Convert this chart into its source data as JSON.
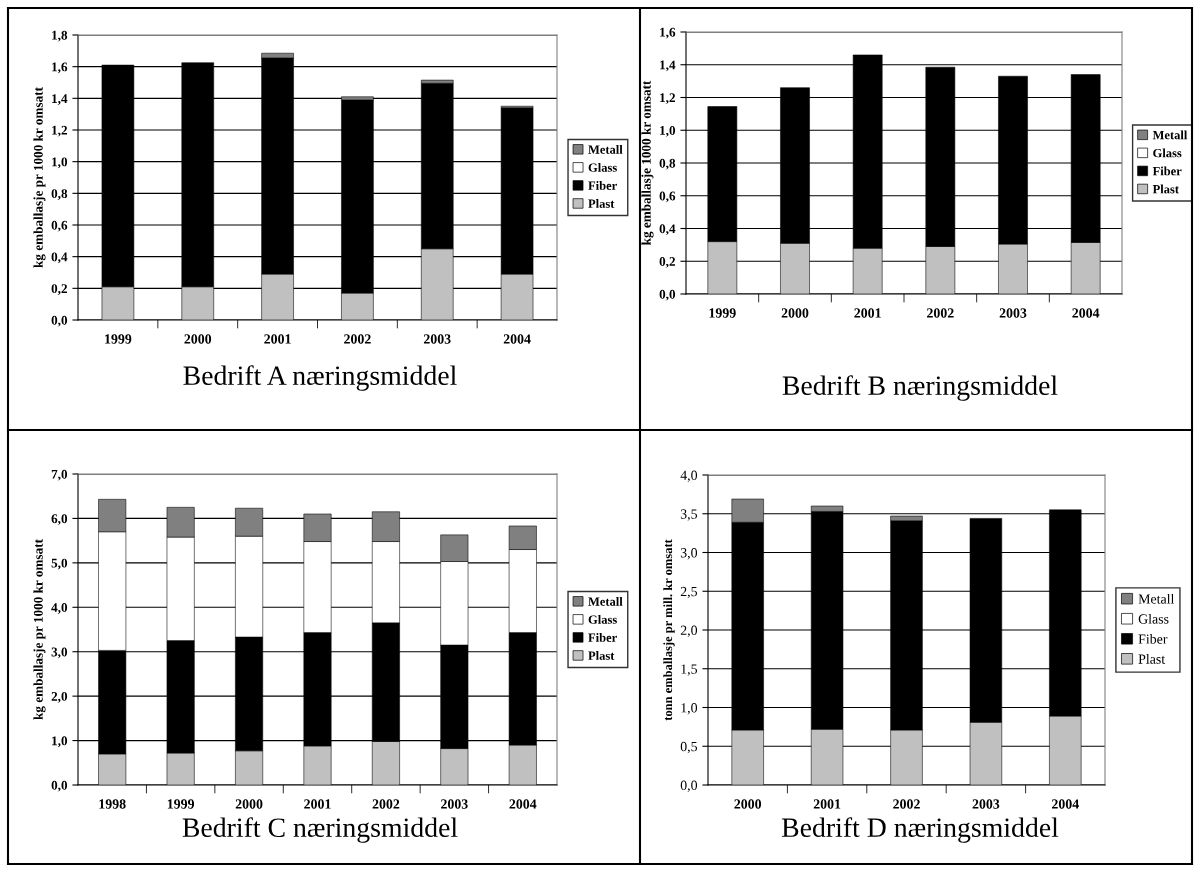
{
  "chart_data": [
    {
      "type": "bar",
      "stacked": true,
      "title": "Bedrift A næringsmiddel",
      "ylabel": "kg emballasje pr 1000 kr omsatt",
      "categories": [
        "1999",
        "2000",
        "2001",
        "2002",
        "2003",
        "2004"
      ],
      "series": [
        {
          "name": "Plast",
          "color": "#c0c0c0",
          "values": [
            0.21,
            0.21,
            0.29,
            0.17,
            0.45,
            0.29
          ]
        },
        {
          "name": "Fiber",
          "color": "#000000",
          "values": [
            1.4,
            1.415,
            1.365,
            1.22,
            1.045,
            1.05
          ]
        },
        {
          "name": "Glass",
          "color": "#ffffff",
          "values": [
            null,
            null,
            null,
            null,
            null,
            null
          ]
        },
        {
          "name": "Metall",
          "color": "#808080",
          "values": [
            null,
            null,
            0.03,
            0.02,
            0.02,
            0.01
          ]
        }
      ],
      "ylim": [
        0,
        1.8
      ],
      "yticks": [
        {
          "value": 0,
          "label": "0,0"
        },
        {
          "value": 0.2,
          "label": "0,2"
        },
        {
          "value": 0.4,
          "label": "0,4"
        },
        {
          "value": 0.6,
          "label": "0,6"
        },
        {
          "value": 0.8,
          "label": "0,8"
        },
        {
          "value": 1.0,
          "label": "1,0"
        },
        {
          "value": 1.2,
          "label": "1,2"
        },
        {
          "value": 1.4,
          "label": "1,4"
        },
        {
          "value": 1.6,
          "label": "1,6"
        },
        {
          "value": 1.8,
          "label": "1,8"
        }
      ],
      "grid": "y",
      "legend": "right"
    },
    {
      "type": "bar",
      "stacked": true,
      "title": "Bedrift B næringsmiddel",
      "ylabel": "kg emballasje 1000 kr omsatt",
      "categories": [
        "1999",
        "2000",
        "2001",
        "2002",
        "2003",
        "2004"
      ],
      "series": [
        {
          "name": "Plast",
          "color": "#c0c0c0",
          "values": [
            0.32,
            0.31,
            0.28,
            0.29,
            0.305,
            0.315
          ]
        },
        {
          "name": "Fiber",
          "color": "#000000",
          "values": [
            0.825,
            0.95,
            1.18,
            1.095,
            1.025,
            1.025
          ]
        },
        {
          "name": "Glass",
          "color": "#ffffff",
          "values": [
            null,
            null,
            null,
            null,
            null,
            null
          ]
        },
        {
          "name": "Metall",
          "color": "#808080",
          "values": [
            null,
            null,
            null,
            null,
            null,
            null
          ]
        }
      ],
      "ylim": [
        0,
        1.6
      ],
      "yticks": [
        {
          "value": 0,
          "label": "0,0"
        },
        {
          "value": 0.2,
          "label": "0,2"
        },
        {
          "value": 0.4,
          "label": "0,4"
        },
        {
          "value": 0.6,
          "label": "0,6"
        },
        {
          "value": 0.8,
          "label": "0,8"
        },
        {
          "value": 1.0,
          "label": "1,0"
        },
        {
          "value": 1.2,
          "label": "1,2"
        },
        {
          "value": 1.4,
          "label": "1,4"
        },
        {
          "value": 1.6,
          "label": "1,6"
        }
      ],
      "grid": "y",
      "legend": "right"
    },
    {
      "type": "bar",
      "stacked": true,
      "title": "Bedrift C næringsmiddel",
      "ylabel": "kg emballasje pr 1000 kr omsatt",
      "categories": [
        "1998",
        "1999",
        "2000",
        "2001",
        "2002",
        "2003",
        "2004"
      ],
      "series": [
        {
          "name": "Plast",
          "color": "#c0c0c0",
          "values": [
            0.7,
            0.72,
            0.77,
            0.88,
            0.98,
            0.82,
            0.9
          ]
        },
        {
          "name": "Fiber",
          "color": "#000000",
          "values": [
            2.33,
            2.53,
            2.56,
            2.55,
            2.67,
            2.33,
            2.53
          ]
        },
        {
          "name": "Glass",
          "color": "#ffffff",
          "values": [
            2.67,
            2.33,
            2.27,
            2.05,
            1.83,
            1.88,
            1.87
          ]
        },
        {
          "name": "Metall",
          "color": "#808080",
          "values": [
            0.73,
            0.67,
            0.63,
            0.62,
            0.67,
            0.6,
            0.53
          ]
        }
      ],
      "ylim": [
        0,
        7
      ],
      "yticks": [
        {
          "value": 0,
          "label": "0,0"
        },
        {
          "value": 1,
          "label": "1,0"
        },
        {
          "value": 2,
          "label": "2,0"
        },
        {
          "value": 3,
          "label": "3,0"
        },
        {
          "value": 4,
          "label": "4,0"
        },
        {
          "value": 5,
          "label": "5,0"
        },
        {
          "value": 6,
          "label": "6,0"
        },
        {
          "value": 7,
          "label": "7,0"
        }
      ],
      "grid": "y",
      "legend": "right"
    },
    {
      "type": "bar",
      "stacked": true,
      "title": "Bedrift D næringsmiddel",
      "ylabel": "tonn emballasje pr mill. kr omsatt",
      "categories": [
        "2000",
        "2001",
        "2002",
        "2003",
        "2004"
      ],
      "series": [
        {
          "name": "Plast",
          "color": "#c0c0c0",
          "values": [
            0.71,
            0.72,
            0.71,
            0.81,
            0.89
          ]
        },
        {
          "name": "Fiber",
          "color": "#000000",
          "values": [
            2.68,
            2.81,
            2.7,
            2.63,
            2.66
          ]
        },
        {
          "name": "Glass",
          "color": "#ffffff",
          "values": [
            null,
            null,
            null,
            null,
            null
          ]
        },
        {
          "name": "Metall",
          "color": "#808080",
          "values": [
            0.3,
            0.07,
            0.06,
            null,
            null
          ]
        }
      ],
      "ylim": [
        0,
        4
      ],
      "yticks": [
        {
          "value": 0,
          "label": "0,0"
        },
        {
          "value": 0.5,
          "label": "0,5"
        },
        {
          "value": 1,
          "label": "1,0"
        },
        {
          "value": 1.5,
          "label": "1,5"
        },
        {
          "value": 2,
          "label": "2,0"
        },
        {
          "value": 2.5,
          "label": "2,5"
        },
        {
          "value": 3,
          "label": "3,0"
        },
        {
          "value": 3.5,
          "label": "3,5"
        },
        {
          "value": 4,
          "label": "4,0"
        }
      ],
      "grid": "y",
      "legend": "right"
    }
  ]
}
